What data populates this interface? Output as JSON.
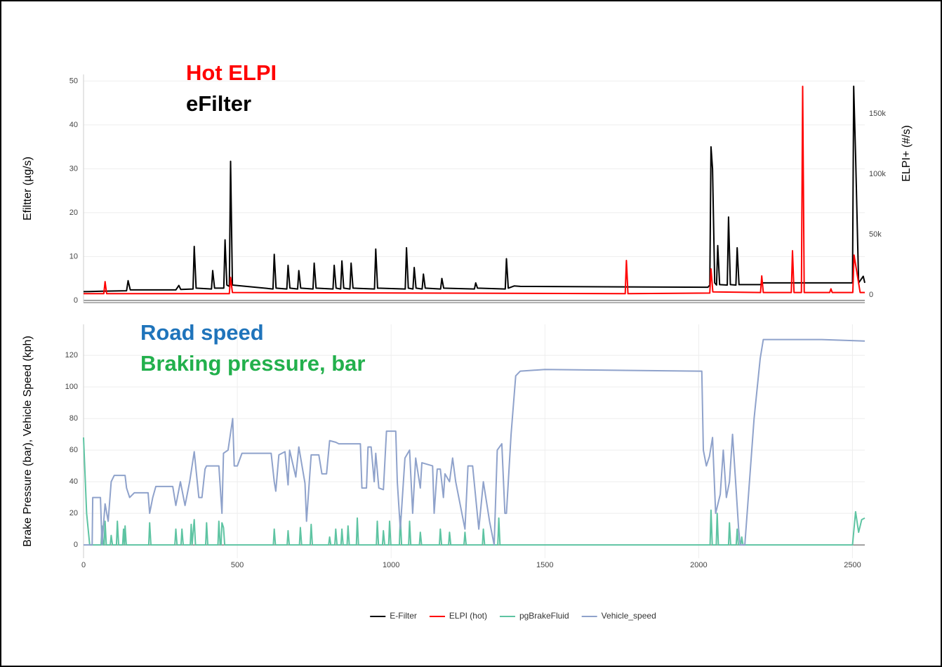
{
  "chart_data": [
    {
      "type": "line",
      "ylabel": "Efiltter (µg/s)",
      "y2label": "ELPI+ (#/s)",
      "annotations": [
        {
          "text": "Hot ELPI",
          "color": "#ff0000"
        },
        {
          "text": "eFilter",
          "color": "#000000"
        }
      ],
      "xlim": [
        0,
        2540
      ],
      "ylim": [
        -0.5,
        51.5
      ],
      "yticks": [
        0,
        10,
        20,
        30,
        40,
        50
      ],
      "y2lim": [
        -6400,
        182600
      ],
      "y2ticks": [
        0,
        {
          "value": 50000,
          "label": "50k"
        },
        {
          "value": 100000,
          "label": "100k"
        },
        {
          "value": 150000,
          "label": "150k"
        }
      ],
      "grid": true,
      "series": [
        {
          "name": "E-Filter",
          "color": "#000000",
          "x": [
            0,
            60,
            140,
            145,
            152,
            300,
            310,
            316,
            356,
            360,
            366,
            416,
            420,
            426,
            456,
            460,
            466,
            474,
            478,
            484,
            616,
            620,
            626,
            661,
            665,
            671,
            696,
            700,
            706,
            746,
            750,
            756,
            811,
            815,
            821,
            836,
            840,
            846,
            866,
            870,
            876,
            946,
            950,
            956,
            1046,
            1050,
            1056,
            1071,
            1075,
            1081,
            1101,
            1105,
            1111,
            1161,
            1165,
            1171,
            1271,
            1275,
            1281,
            1371,
            1375,
            1381,
            1400,
            1420,
            2030,
            2036,
            2040,
            2045,
            2052,
            2058,
            2062,
            2068,
            2093,
            2097,
            2103,
            2121,
            2125,
            2131,
            2200,
            2210,
            2500,
            2504,
            2510,
            2520,
            2535,
            2540
          ],
          "values": [
            2,
            2.1,
            2.2,
            4.5,
            2.4,
            2.4,
            3.4,
            2.5,
            2.6,
            12.3,
            2.8,
            2.6,
            6.8,
            2.8,
            2.8,
            13.8,
            3.5,
            3.2,
            31.7,
            3.5,
            2.6,
            10.5,
            2.8,
            2.6,
            8,
            2.8,
            2.6,
            6.8,
            2.8,
            2.6,
            8.5,
            2.8,
            2.6,
            8,
            2.8,
            2.6,
            9,
            2.8,
            2.6,
            8.5,
            2.8,
            2.6,
            11.7,
            2.8,
            2.6,
            12,
            2.8,
            2.6,
            7.5,
            2.8,
            2.6,
            6,
            2.8,
            2.6,
            5,
            2.8,
            2.6,
            4,
            2.8,
            2.6,
            9.5,
            2.8,
            3.3,
            3.2,
            3,
            3.5,
            35,
            30,
            4,
            3.5,
            12.5,
            3.6,
            3.5,
            19,
            3.6,
            3.5,
            12,
            3.6,
            3.6,
            4,
            4,
            48.8,
            33,
            4,
            5.5,
            4
          ]
        },
        {
          "name": "ELPI (hot)",
          "color": "#ff0000",
          "axis": "y2",
          "x": [
            0,
            66,
            70,
            75,
            474,
            478,
            484,
            1761,
            1765,
            1770,
            2036,
            2040,
            2046,
            2201,
            2205,
            2210,
            2301,
            2305,
            2310,
            2334,
            2338,
            2343,
            2426,
            2430,
            2434,
            2501,
            2505,
            2525,
            2540
          ],
          "values": [
            1000,
            1000,
            11000,
            1000,
            1000,
            14500,
            2000,
            1000,
            28500,
            1000,
            1500,
            21500,
            2500,
            2000,
            15700,
            2000,
            2000,
            36600,
            2000,
            2000,
            172700,
            2000,
            2000,
            5000,
            2000,
            2000,
            33000,
            2000,
            2000
          ]
        }
      ]
    },
    {
      "type": "line",
      "ylabel": "Brake Pressure (bar), Vehicle Speed (kph)",
      "annotations": [
        {
          "text": "Road speed",
          "color": "#1f74bb"
        },
        {
          "text": "Braking pressure, bar",
          "color": "#22b04c"
        }
      ],
      "xlim": [
        0,
        2540
      ],
      "xticks": [
        0,
        500,
        1000,
        1500,
        2000,
        2500
      ],
      "ylim": [
        -8.4,
        139.6
      ],
      "yticks": [
        0,
        20,
        40,
        60,
        80,
        100,
        120
      ],
      "grid": true,
      "legend": "bottom",
      "series": [
        {
          "name": "pgBrakeFluid",
          "color": "#5ec4a2",
          "x": [
            0,
            10,
            20,
            57,
            60,
            64,
            67,
            70,
            74,
            87,
            90,
            94,
            107,
            110,
            114,
            127,
            130,
            133,
            135,
            139,
            212,
            215,
            219,
            297,
            300,
            304,
            317,
            320,
            324,
            347,
            350,
            353,
            360,
            364,
            397,
            400,
            404,
            437,
            440,
            444,
            447,
            450,
            455,
            459,
            617,
            620,
            624,
            662,
            665,
            669,
            702,
            705,
            709,
            737,
            740,
            744,
            797,
            800,
            804,
            817,
            820,
            824,
            837,
            840,
            844,
            857,
            860,
            864,
            887,
            890,
            894,
            952,
            955,
            959,
            972,
            975,
            979,
            992,
            995,
            999,
            1027,
            1030,
            1034,
            1057,
            1060,
            1064,
            1092,
            1095,
            1099,
            1157,
            1160,
            1164,
            1187,
            1190,
            1194,
            1237,
            1240,
            1244,
            1297,
            1300,
            1304,
            1347,
            1350,
            1354,
            2037,
            2040,
            2044,
            2057,
            2060,
            2064,
            2097,
            2100,
            2104,
            2122,
            2125,
            2129,
            2137,
            2140,
            2144,
            2500,
            2510,
            2520,
            2530,
            2540
          ],
          "values": [
            68,
            20,
            0,
            0,
            12,
            0,
            0,
            15,
            0,
            0,
            6,
            0,
            0,
            15,
            0,
            0,
            10,
            0,
            12,
            0,
            0,
            14,
            0,
            0,
            10,
            0,
            0,
            10,
            0,
            0,
            13,
            0,
            16,
            0,
            0,
            14,
            0,
            0,
            15,
            0,
            0,
            14,
            11,
            0,
            0,
            10,
            0,
            0,
            9,
            0,
            0,
            11,
            0,
            0,
            13,
            0,
            0,
            5,
            0,
            0,
            10,
            0,
            0,
            10,
            0,
            0,
            12,
            0,
            0,
            17,
            0,
            0,
            15,
            0,
            0,
            9,
            0,
            0,
            15,
            0,
            0,
            18,
            0,
            0,
            15,
            0,
            0,
            8,
            0,
            0,
            10,
            0,
            0,
            8,
            0,
            0,
            8,
            0,
            0,
            10,
            0,
            0,
            17,
            0,
            0,
            22,
            0,
            0,
            20,
            0,
            0,
            14,
            0,
            0,
            10,
            0,
            0,
            5,
            0,
            0,
            21,
            8,
            16,
            17
          ]
        },
        {
          "name": "Vehicle_speed",
          "color": "#8fa2cb",
          "x": [
            0,
            28,
            30,
            55,
            60,
            70,
            80,
            90,
            100,
            135,
            140,
            150,
            165,
            210,
            215,
            225,
            235,
            290,
            300,
            315,
            330,
            345,
            360,
            375,
            385,
            395,
            400,
            440,
            450,
            455,
            470,
            485,
            490,
            500,
            515,
            610,
            620,
            625,
            635,
            655,
            665,
            670,
            690,
            700,
            720,
            725,
            740,
            765,
            775,
            790,
            800,
            820,
            830,
            900,
            905,
            920,
            925,
            935,
            945,
            950,
            960,
            975,
            985,
            1015,
            1020,
            1030,
            1045,
            1060,
            1070,
            1080,
            1095,
            1100,
            1135,
            1140,
            1150,
            1160,
            1170,
            1175,
            1190,
            1200,
            1210,
            1220,
            1240,
            1250,
            1265,
            1285,
            1300,
            1320,
            1335,
            1345,
            1360,
            1370,
            1375,
            1390,
            1405,
            1420,
            1500,
            2000,
            2010,
            2015,
            2025,
            2035,
            2045,
            2055,
            2070,
            2080,
            2090,
            2100,
            2110,
            2120,
            2130,
            2135,
            2150,
            2180,
            2200,
            2210,
            2300,
            2400,
            2540
          ],
          "values": [
            0,
            0,
            30,
            30,
            0,
            26,
            15,
            40,
            44,
            44,
            36,
            30,
            33,
            33,
            20,
            30,
            37,
            37,
            25,
            40,
            25,
            40,
            59,
            30,
            30,
            48,
            50,
            50,
            20,
            58,
            60,
            80,
            50,
            50,
            58,
            58,
            40,
            34,
            57,
            59,
            38,
            60,
            43,
            62,
            39,
            15,
            57,
            57,
            45,
            45,
            66,
            65,
            64,
            64,
            36,
            36,
            62,
            62,
            40,
            58,
            36,
            35,
            72,
            72,
            40,
            10,
            55,
            60,
            20,
            55,
            36,
            52,
            50,
            20,
            48,
            48,
            30,
            45,
            40,
            55,
            40,
            30,
            10,
            50,
            50,
            10,
            40,
            15,
            0,
            60,
            64,
            20,
            20,
            70,
            107,
            110,
            111,
            110,
            110,
            60,
            50,
            56,
            68,
            20,
            32,
            60,
            30,
            40,
            70,
            40,
            10,
            0,
            0,
            80,
            118,
            130,
            130,
            130,
            129
          ]
        }
      ]
    }
  ]
}
